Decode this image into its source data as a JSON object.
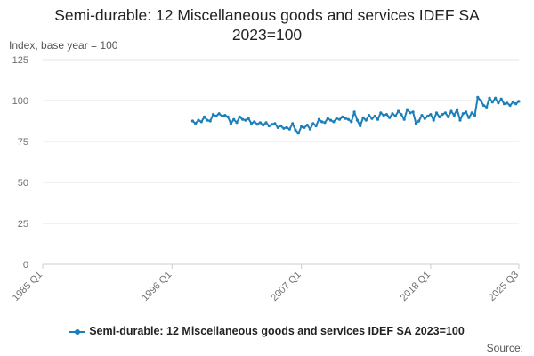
{
  "chart_data": {
    "type": "line",
    "title": "Semi-durable: 12 Miscellaneous goods and services IDEF SA 2023=100",
    "title_lines": [
      "Semi-durable: 12 Miscellaneous goods and services IDEF SA",
      "2023=100"
    ],
    "ylabel": "Index, base year = 100",
    "xlabel": "",
    "x_tick_labels": [
      "1985 Q1",
      "1996 Q1",
      "2007 Q1",
      "2018 Q1",
      "2025 Q3"
    ],
    "y_tick_labels": [
      "0",
      "25",
      "50",
      "75",
      "100",
      "125"
    ],
    "ylim": [
      0,
      125
    ],
    "xlim": [
      "1985 Q1",
      "2025 Q3"
    ],
    "grid": true,
    "legend_position": "bottom",
    "source_label": "Source:",
    "series": [
      {
        "name": "Semi-durable: 12 Miscellaneous goods and services IDEF SA 2023=100",
        "color": "#1d7fb8",
        "x": [
          "1997 Q4",
          "1998 Q1",
          "1998 Q2",
          "1998 Q3",
          "1998 Q4",
          "1999 Q1",
          "1999 Q2",
          "1999 Q3",
          "1999 Q4",
          "2000 Q1",
          "2000 Q2",
          "2000 Q3",
          "2000 Q4",
          "2001 Q1",
          "2001 Q2",
          "2001 Q3",
          "2001 Q4",
          "2002 Q1",
          "2002 Q2",
          "2002 Q3",
          "2002 Q4",
          "2003 Q1",
          "2003 Q2",
          "2003 Q3",
          "2003 Q4",
          "2004 Q1",
          "2004 Q2",
          "2004 Q3",
          "2004 Q4",
          "2005 Q1",
          "2005 Q2",
          "2005 Q3",
          "2005 Q4",
          "2006 Q1",
          "2006 Q2",
          "2006 Q3",
          "2006 Q4",
          "2007 Q1",
          "2007 Q2",
          "2007 Q3",
          "2007 Q4",
          "2008 Q1",
          "2008 Q2",
          "2008 Q3",
          "2008 Q4",
          "2009 Q1",
          "2009 Q2",
          "2009 Q3",
          "2009 Q4",
          "2010 Q1",
          "2010 Q2",
          "2010 Q3",
          "2010 Q4",
          "2011 Q1",
          "2011 Q2",
          "2011 Q3",
          "2011 Q4",
          "2012 Q1",
          "2012 Q2",
          "2012 Q3",
          "2012 Q4",
          "2013 Q1",
          "2013 Q2",
          "2013 Q3",
          "2013 Q4",
          "2014 Q1",
          "2014 Q2",
          "2014 Q3",
          "2014 Q4",
          "2015 Q1",
          "2015 Q2",
          "2015 Q3",
          "2015 Q4",
          "2016 Q1",
          "2016 Q2",
          "2016 Q3",
          "2016 Q4",
          "2017 Q1",
          "2017 Q2",
          "2017 Q3",
          "2017 Q4",
          "2018 Q1",
          "2018 Q2",
          "2018 Q3",
          "2018 Q4",
          "2019 Q1",
          "2019 Q2",
          "2019 Q3",
          "2019 Q4",
          "2020 Q1",
          "2020 Q2",
          "2020 Q3",
          "2020 Q4",
          "2021 Q1",
          "2021 Q2",
          "2021 Q3",
          "2021 Q4",
          "2022 Q1",
          "2022 Q2",
          "2022 Q3",
          "2022 Q4",
          "2023 Q1",
          "2023 Q2",
          "2023 Q3",
          "2023 Q4",
          "2024 Q1",
          "2024 Q2",
          "2024 Q3",
          "2024 Q4",
          "2025 Q1",
          "2025 Q2",
          "2025 Q3"
        ],
        "values": [
          87.5,
          86.0,
          88.0,
          87.0,
          90.0,
          88.0,
          87.5,
          91.5,
          90.5,
          92.0,
          90.5,
          91.0,
          90.0,
          86.0,
          88.5,
          86.5,
          90.0,
          88.5,
          88.0,
          89.0,
          86.0,
          87.0,
          85.5,
          86.5,
          85.0,
          86.5,
          84.5,
          85.5,
          86.0,
          83.5,
          84.5,
          83.0,
          83.5,
          82.5,
          86.0,
          82.0,
          80.0,
          84.0,
          83.5,
          85.0,
          82.5,
          86.0,
          84.5,
          88.5,
          87.0,
          86.5,
          89.0,
          88.0,
          87.0,
          89.0,
          88.5,
          90.0,
          89.0,
          88.5,
          87.0,
          93.0,
          88.0,
          84.5,
          89.5,
          88.0,
          91.0,
          89.0,
          90.5,
          88.5,
          92.5,
          91.0,
          91.5,
          89.5,
          92.0,
          90.5,
          93.5,
          91.5,
          88.5,
          94.5,
          92.5,
          93.0,
          86.0,
          87.5,
          91.0,
          89.0,
          90.5,
          91.5,
          88.0,
          92.5,
          90.0,
          91.5,
          92.5,
          90.0,
          93.5,
          91.0,
          94.5,
          88.0,
          92.0,
          93.0,
          89.5,
          92.5,
          91.0,
          102.0,
          100.0,
          97.0,
          96.0,
          101.5,
          99.0,
          101.5,
          98.5,
          101.0,
          98.0,
          98.5,
          97.0,
          99.0,
          98.0,
          99.5
        ]
      }
    ]
  }
}
